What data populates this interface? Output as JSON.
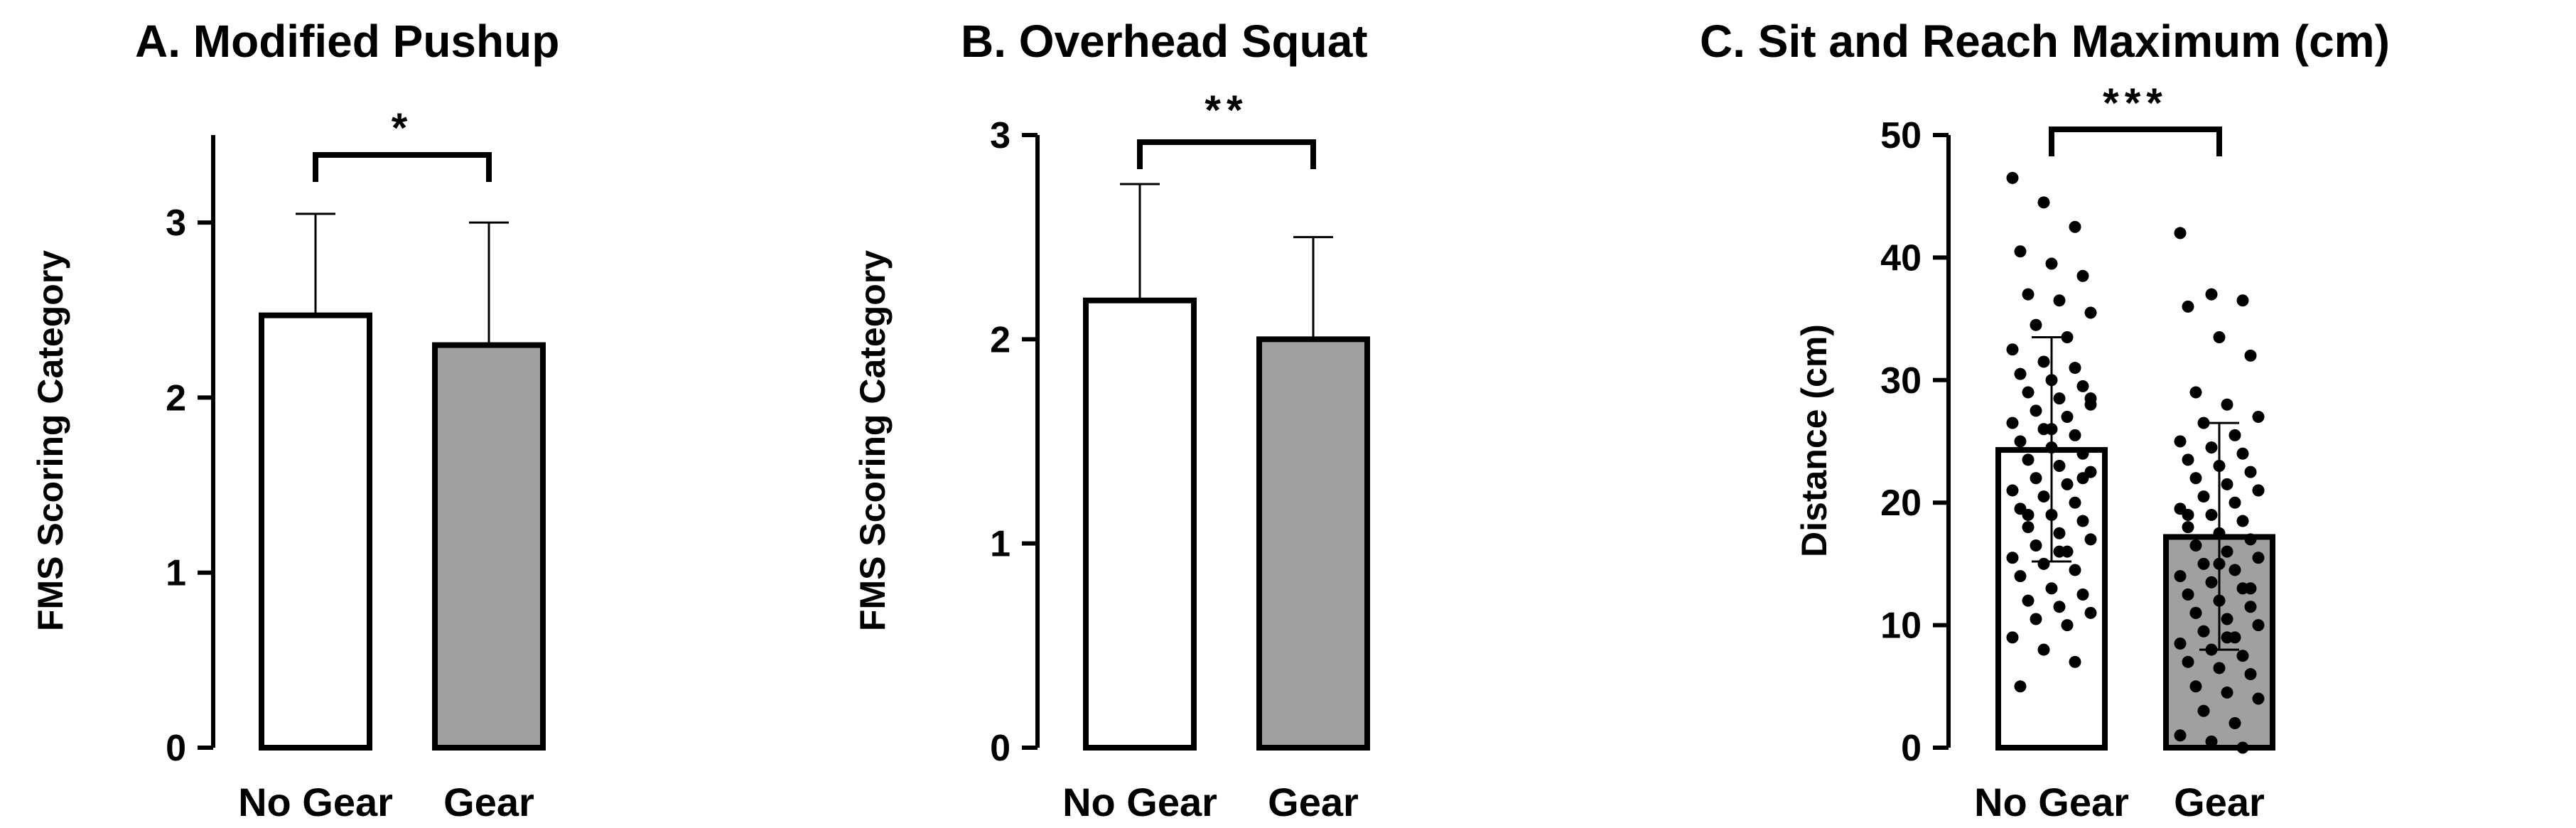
{
  "chart_data": [
    {
      "type": "bar",
      "title": "A. Modified Pushup",
      "ylabel": "FMS Scoring Category",
      "xlabel": "",
      "categories": [
        "No Gear",
        "Gear"
      ],
      "values": [
        2.47,
        2.3
      ],
      "error_upper": [
        3.05,
        3.0
      ],
      "bar_colors": [
        "#ffffff",
        "#a0a0a0"
      ],
      "ylim": [
        0,
        3.5
      ],
      "yticks": [
        0,
        1,
        2,
        3
      ],
      "significance": "*",
      "grid": false
    },
    {
      "type": "bar",
      "title": "B. Overhead Squat",
      "ylabel": "FMS Scoring Category",
      "xlabel": "",
      "categories": [
        "No Gear",
        "Gear"
      ],
      "values": [
        2.19,
        2.0
      ],
      "error_upper": [
        2.76,
        2.5
      ],
      "bar_colors": [
        "#ffffff",
        "#a0a0a0"
      ],
      "ylim": [
        0,
        3
      ],
      "yticks": [
        0,
        1,
        2,
        3
      ],
      "significance": "**",
      "grid": false
    },
    {
      "type": "bar",
      "title": "C. Sit and Reach Maximum (cm)",
      "ylabel": "Distance (cm)",
      "xlabel": "",
      "categories": [
        "No Gear",
        "Gear"
      ],
      "values": [
        24.3,
        17.2
      ],
      "error_upper": [
        33.5,
        26.5
      ],
      "error_lower": [
        15.2,
        8.0
      ],
      "bar_colors": [
        "#ffffff",
        "#a0a0a0"
      ],
      "ylim": [
        0,
        50
      ],
      "yticks": [
        0,
        10,
        20,
        30,
        40,
        50
      ],
      "significance": "***",
      "grid": false,
      "points": [
        [
          46.5,
          44.5,
          42.5,
          40.5,
          39.5,
          38.5,
          37.0,
          36.5,
          35.5,
          34.5,
          33.5,
          32.5,
          31.5,
          31.0,
          30.5,
          30.0,
          29.5,
          29.0,
          28.5,
          28.0,
          27.5,
          27.0,
          26.5,
          26.0,
          25.5,
          25.0,
          24.5,
          24.0,
          23.5,
          23.0,
          22.5,
          22.0,
          21.5,
          21.0,
          20.5,
          20.0,
          19.5,
          19.0,
          18.5,
          18.0,
          17.5,
          17.0,
          16.5,
          16.0,
          15.5,
          15.0,
          14.5,
          14.0,
          13.0,
          12.5,
          12.0,
          11.5,
          11.0,
          10.5,
          10.0,
          9.0,
          8.0,
          7.0,
          5.0,
          26.0,
          22.0,
          19.0,
          16.0,
          28.5
        ],
        [
          42.0,
          37.0,
          36.5,
          36.0,
          33.5,
          32.0,
          29.0,
          28.0,
          27.0,
          26.5,
          25.5,
          25.0,
          24.5,
          24.0,
          23.5,
          23.0,
          22.5,
          22.0,
          21.5,
          21.0,
          20.5,
          20.0,
          19.5,
          19.0,
          18.5,
          18.0,
          17.5,
          17.0,
          16.5,
          16.0,
          15.5,
          15.0,
          14.5,
          14.0,
          13.5,
          13.0,
          12.5,
          12.0,
          11.5,
          11.0,
          10.5,
          10.0,
          9.5,
          9.0,
          8.5,
          8.0,
          7.5,
          7.0,
          6.5,
          6.0,
          5.0,
          4.5,
          4.0,
          3.0,
          2.0,
          1.0,
          0.5,
          0.0,
          19.0,
          15.0,
          13.0,
          11.0,
          9.0,
          21.0
        ]
      ]
    }
  ]
}
